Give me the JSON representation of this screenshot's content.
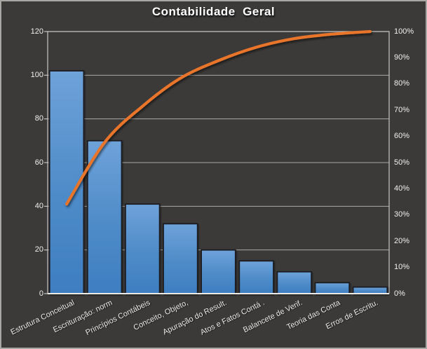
{
  "title": "Contabilidade  Geral",
  "colors": {
    "background": "#3b3a39",
    "frame_border": "#a9a7a4",
    "plot_border": "#c7c5c3",
    "axis_line": "#eceae7",
    "gridline": "#bdbbb9",
    "axis_text": "#f1efed",
    "bar_fill_top": "#6ea2d9",
    "bar_fill_mid": "#4e8bc8",
    "bar_fill_bottom": "#3e7ec1",
    "bar_border": "#1b1f24",
    "line": "#e8752c"
  },
  "chart_data": {
    "type": "bar",
    "subtype": "pareto (bars + cumulative percent line)",
    "title": "Contabilidade  Geral",
    "categories": [
      "Estrutura Conceitual",
      "Escrituração: norm",
      "Princípios Contábeis",
      "Conceito, Objeto,",
      "Apuração do Result.",
      "Atos e Fatos Contá .",
      "Balancete de Verif.",
      "Teoria das Conta",
      "Erros de Escritu."
    ],
    "series": [
      {
        "name": "frequency-bars",
        "type": "bar",
        "values": [
          102,
          70,
          41,
          32,
          20,
          15,
          10,
          5,
          3
        ]
      },
      {
        "name": "cumulative-percent-line",
        "type": "line",
        "values": [
          34.2,
          57.7,
          71.5,
          82.2,
          88.9,
          94.0,
          97.3,
          99.0,
          100.0
        ]
      }
    ],
    "left_axis": {
      "min": 0,
      "max": 120,
      "step": 20,
      "ticks": [
        "0",
        "20",
        "40",
        "60",
        "80",
        "100",
        "120"
      ]
    },
    "right_axis": {
      "min": 0,
      "max": 100,
      "step": 10,
      "ticks": [
        "0%",
        "10%",
        "20%",
        "30%",
        "40%",
        "50%",
        "60%",
        "70%",
        "80%",
        "90%",
        "100%"
      ]
    },
    "grid": true,
    "legend": "none"
  }
}
